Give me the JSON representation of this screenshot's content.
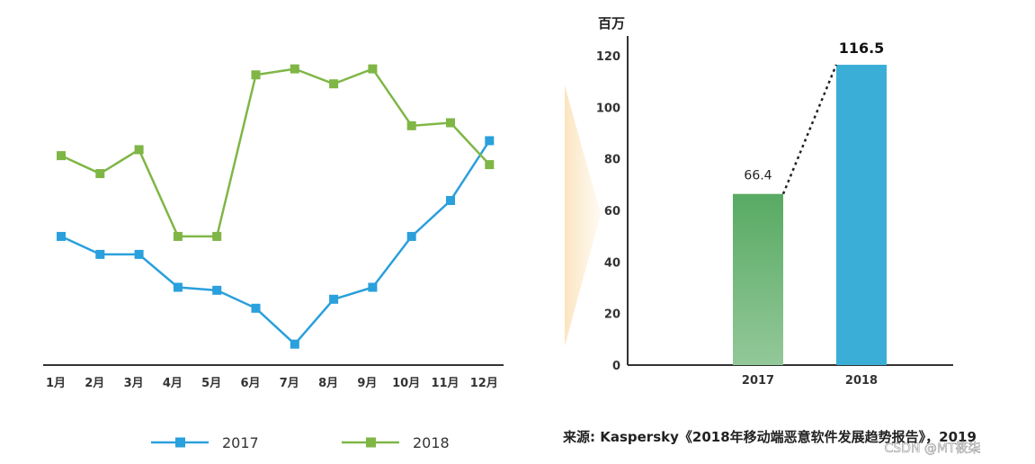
{
  "chart_data": [
    {
      "type": "line",
      "categories": [
        "1月",
        "2月",
        "3月",
        "4月",
        "5月",
        "6月",
        "7月",
        "8月",
        "9月",
        "10月",
        "11月",
        "12月"
      ],
      "series": [
        {
          "name": "2017",
          "color": "#2aa0dc",
          "values": [
            43,
            37,
            37,
            26,
            25,
            19,
            7,
            22,
            26,
            43,
            55,
            75
          ]
        },
        {
          "name": "2018",
          "color": "#7fb646",
          "values": [
            70,
            64,
            72,
            43,
            43,
            97,
            99,
            94,
            99,
            80,
            81,
            67
          ]
        }
      ],
      "ylim": [
        0,
        110
      ],
      "yticks_visible": false
    },
    {
      "type": "bar",
      "categories": [
        "2017",
        "2018"
      ],
      "values": [
        66.4,
        116.5
      ],
      "value_labels": [
        "66.4",
        "116.5"
      ],
      "colors": [
        "#5aad66",
        "#3aaed6"
      ],
      "ylabel": "百万",
      "yticks": [
        "0",
        "20",
        "40",
        "60",
        "80",
        "100",
        "120"
      ],
      "ylim": [
        0,
        120
      ],
      "connector": "dotted"
    }
  ],
  "legend": {
    "items": [
      {
        "label": "2017",
        "color": "#2aa0dc"
      },
      {
        "label": "2018",
        "color": "#7fb646"
      }
    ]
  },
  "source": "来源: Kaspersky《2018年移动端恶意软件发展趋势报告》，2019",
  "watermark": "CSDN @MT筱柒"
}
